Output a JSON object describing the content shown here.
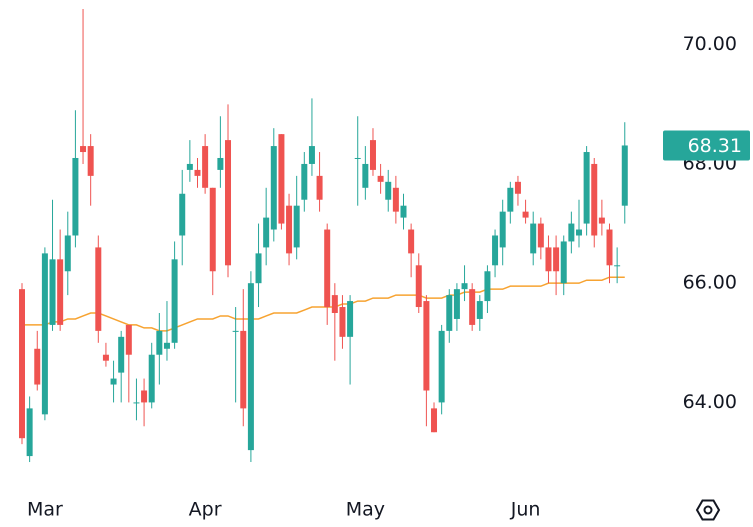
{
  "chart_data": {
    "type": "candlestick",
    "up_color": "#26a69a",
    "down_color": "#ef5350",
    "open": [
      65.9,
      63.1,
      64.9,
      63.8,
      65.3,
      66.4,
      66.2,
      66.8,
      68.3,
      68.3,
      66.6,
      64.8,
      64.3,
      64.5,
      65.3,
      64.0,
      64.2,
      64.0,
      64.8,
      64.9,
      65.0,
      66.8,
      67.9,
      67.9,
      68.3,
      67.6,
      67.9,
      68.4,
      65.2,
      65.2,
      63.2,
      66.0,
      66.6,
      66.9,
      68.5,
      67.3,
      66.6,
      67.4,
      68.0,
      67.8,
      66.9,
      65.8,
      65.6,
      65.1,
      68.1,
      67.6,
      68.4,
      67.8,
      67.4,
      67.6,
      67.1,
      66.9,
      66.3,
      65.7,
      63.9,
      64.0,
      65.2,
      65.4,
      65.9,
      65.9,
      65.4,
      65.7,
      66.3,
      66.6,
      67.2,
      67.7,
      67.2,
      66.5,
      67.0,
      66.6,
      66.6,
      66.0,
      66.7,
      66.8,
      67.0,
      68.0,
      67.1,
      66.9,
      66.3,
      67.3
    ],
    "high": [
      66.0,
      64.1,
      65.2,
      66.6,
      67.4,
      66.9,
      67.2,
      68.9,
      70.6,
      68.5,
      66.8,
      65.0,
      64.7,
      65.2,
      65.3,
      64.4,
      64.4,
      65.0,
      65.5,
      65.7,
      66.7,
      67.9,
      68.4,
      68.1,
      68.5,
      67.6,
      68.8,
      69.0,
      65.6,
      65.9,
      66.2,
      67.0,
      67.6,
      68.6,
      68.5,
      67.5,
      67.8,
      68.2,
      69.1,
      68.2,
      67.0,
      66.0,
      65.8,
      65.8,
      68.8,
      68.3,
      68.6,
      68.0,
      67.9,
      67.8,
      67.5,
      67.0,
      66.5,
      65.8,
      64.0,
      65.3,
      65.9,
      66.0,
      66.3,
      66.0,
      65.8,
      66.3,
      66.9,
      67.4,
      67.7,
      67.8,
      67.4,
      67.2,
      67.1,
      66.8,
      66.8,
      66.8,
      67.2,
      67.4,
      68.3,
      68.1,
      67.4,
      67.0,
      66.6,
      68.7
    ],
    "low": [
      63.3,
      63.0,
      64.2,
      63.7,
      65.2,
      65.2,
      65.8,
      66.6,
      68.0,
      67.3,
      65.0,
      64.6,
      64.0,
      64.0,
      64.0,
      63.7,
      63.6,
      63.9,
      64.3,
      64.7,
      64.9,
      66.3,
      67.7,
      67.6,
      67.5,
      65.8,
      67.6,
      66.1,
      64.0,
      63.6,
      63.0,
      65.6,
      66.3,
      66.7,
      66.9,
      66.3,
      66.4,
      67.2,
      67.8,
      67.2,
      65.3,
      64.7,
      64.9,
      64.3,
      67.3,
      67.4,
      67.8,
      67.5,
      67.2,
      67.0,
      66.9,
      66.1,
      65.5,
      63.6,
      63.5,
      63.8,
      65.0,
      65.2,
      65.7,
      65.2,
      65.2,
      65.5,
      66.1,
      66.3,
      67.0,
      67.3,
      67.0,
      66.3,
      66.4,
      66.0,
      65.8,
      65.8,
      66.5,
      66.6,
      66.8,
      66.6,
      66.8,
      66.0,
      66.0,
      67.0
    ],
    "close": [
      63.4,
      63.9,
      64.3,
      66.5,
      66.4,
      65.3,
      66.8,
      68.1,
      68.2,
      67.8,
      65.2,
      64.7,
      64.4,
      65.1,
      64.8,
      64.0,
      64.0,
      64.8,
      65.2,
      65.0,
      66.4,
      67.5,
      68.0,
      67.8,
      67.6,
      66.2,
      68.1,
      66.3,
      65.2,
      63.9,
      66.0,
      66.5,
      67.1,
      68.3,
      67.0,
      66.5,
      67.3,
      68.0,
      68.3,
      67.4,
      65.6,
      65.5,
      65.1,
      65.7,
      68.1,
      68.0,
      67.9,
      67.7,
      67.7,
      67.2,
      67.3,
      66.5,
      65.6,
      64.2,
      63.5,
      65.2,
      65.8,
      65.9,
      66.0,
      65.3,
      65.7,
      66.2,
      66.8,
      67.2,
      67.6,
      67.5,
      67.1,
      67.0,
      66.6,
      66.2,
      66.2,
      66.7,
      67.0,
      66.9,
      68.2,
      66.8,
      67.0,
      66.3,
      66.3,
      68.31
    ],
    "ma": {
      "color": "#f7a331",
      "values": [
        65.3,
        65.3,
        65.3,
        65.3,
        65.35,
        65.35,
        65.4,
        65.4,
        65.45,
        65.5,
        65.5,
        65.45,
        65.4,
        65.35,
        65.3,
        65.3,
        65.25,
        65.25,
        65.2,
        65.2,
        65.25,
        65.3,
        65.35,
        65.4,
        65.4,
        65.4,
        65.45,
        65.45,
        65.4,
        65.4,
        65.4,
        65.4,
        65.45,
        65.5,
        65.5,
        65.5,
        65.5,
        65.55,
        65.6,
        65.6,
        65.6,
        65.6,
        65.65,
        65.65,
        65.7,
        65.7,
        65.75,
        65.75,
        65.75,
        65.8,
        65.8,
        65.8,
        65.8,
        65.75,
        65.75,
        65.75,
        65.8,
        65.8,
        65.85,
        65.85,
        65.85,
        65.9,
        65.9,
        65.9,
        65.95,
        65.95,
        65.95,
        65.95,
        65.95,
        66.0,
        66.0,
        66.0,
        66.0,
        66.0,
        66.05,
        66.05,
        66.05,
        66.1,
        66.1,
        66.1
      ]
    },
    "ylim": [
      62.9,
      70.75
    ],
    "yticks": [
      {
        "value": 64,
        "label": "64.00"
      },
      {
        "value": 66,
        "label": "66.00"
      },
      {
        "value": 68,
        "label": "68.00"
      },
      {
        "value": 70,
        "label": "70.00"
      }
    ],
    "xticks": [
      {
        "value": 3,
        "label": "Mar"
      },
      {
        "value": 24,
        "label": "Apr"
      },
      {
        "value": 45,
        "label": "May"
      },
      {
        "value": 66,
        "label": "Jun"
      }
    ],
    "last_price": 68.31
  }
}
